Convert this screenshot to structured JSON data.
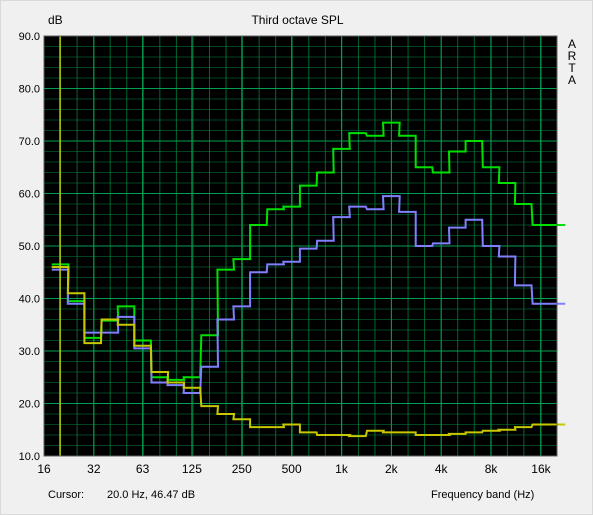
{
  "chart_data": {
    "type": "line",
    "title": "Third octave SPL",
    "ylabel": "dB",
    "xlabel": "Frequency band (Hz)",
    "ylim": [
      10,
      90
    ],
    "y_ticks": [
      "10.0",
      "20.0",
      "30.0",
      "40.0",
      "50.0",
      "60.0",
      "70.0",
      "80.0",
      "90.0"
    ],
    "x_ticks": [
      "16",
      "32",
      "63",
      "125",
      "250",
      "500",
      "1k",
      "2k",
      "4k",
      "8k",
      "16k"
    ],
    "x_range_bands": [
      "16",
      "20k"
    ],
    "grid": true,
    "series": [
      {
        "color": "#00e000",
        "x": [
          "20",
          "25",
          "31.5",
          "40",
          "50",
          "63",
          "80",
          "100",
          "125",
          "160",
          "200",
          "250",
          "315",
          "400",
          "500",
          "630",
          "800",
          "1k",
          "1.25k",
          "1.6k",
          "2k",
          "2.5k",
          "3.15k",
          "4k",
          "5k",
          "6.3k",
          "8k",
          "10k",
          "12.5k",
          "16k",
          "20k"
        ],
        "values": [
          46.5,
          39.5,
          32.5,
          35.8,
          38.5,
          32.0,
          25.0,
          24.5,
          25.0,
          33.0,
          45.5,
          47.5,
          54.0,
          57.0,
          57.5,
          61.5,
          64.0,
          68.5,
          71.5,
          71.0,
          73.5,
          71.0,
          65.0,
          64.0,
          68.0,
          70.0,
          65.0,
          62.0,
          58.0,
          54.0,
          54.0
        ]
      },
      {
        "color": "#8080ff",
        "x": [
          "20",
          "25",
          "31.5",
          "40",
          "50",
          "63",
          "80",
          "100",
          "125",
          "160",
          "200",
          "250",
          "315",
          "400",
          "500",
          "630",
          "800",
          "1k",
          "1.25k",
          "1.6k",
          "2k",
          "2.5k",
          "3.15k",
          "4k",
          "5k",
          "6.3k",
          "8k",
          "10k",
          "12.5k",
          "16k",
          "20k"
        ],
        "values": [
          45.5,
          39.0,
          33.5,
          33.5,
          36.5,
          30.5,
          24.0,
          23.5,
          22.0,
          27.0,
          36.0,
          38.5,
          45.0,
          46.5,
          47.0,
          49.5,
          51.0,
          55.5,
          57.5,
          57.0,
          59.5,
          56.5,
          50.0,
          50.5,
          53.5,
          55.0,
          50.0,
          48.0,
          42.5,
          39.0,
          39.0
        ]
      },
      {
        "color": "#c8c800",
        "x": [
          "20",
          "25",
          "31.5",
          "40",
          "50",
          "63",
          "80",
          "100",
          "125",
          "160",
          "200",
          "250",
          "315",
          "400",
          "500",
          "630",
          "800",
          "1k",
          "1.25k",
          "1.6k",
          "2k",
          "2.5k",
          "3.15k",
          "4k",
          "5k",
          "6.3k",
          "8k",
          "10k",
          "12.5k",
          "16k",
          "20k"
        ],
        "values": [
          46.0,
          41.0,
          31.5,
          36.0,
          35.0,
          31.0,
          26.0,
          24.0,
          23.0,
          19.5,
          18.0,
          17.0,
          15.5,
          15.5,
          16.0,
          14.5,
          14.0,
          14.0,
          13.8,
          14.8,
          14.5,
          14.5,
          14.0,
          14.0,
          14.2,
          14.5,
          14.8,
          15.0,
          15.5,
          16.0,
          16.0
        ]
      }
    ],
    "cursor_x_hz": 20.0
  },
  "logo_letters": [
    "A",
    "R",
    "T",
    "A"
  ],
  "cursor": {
    "label": "Cursor:",
    "value": "20.0 Hz, 46.47 dB"
  },
  "colors": {
    "plot_bg": "#000000",
    "grid": "#007f3f",
    "axis_text": "#000000",
    "cursor": "#c8c800"
  }
}
